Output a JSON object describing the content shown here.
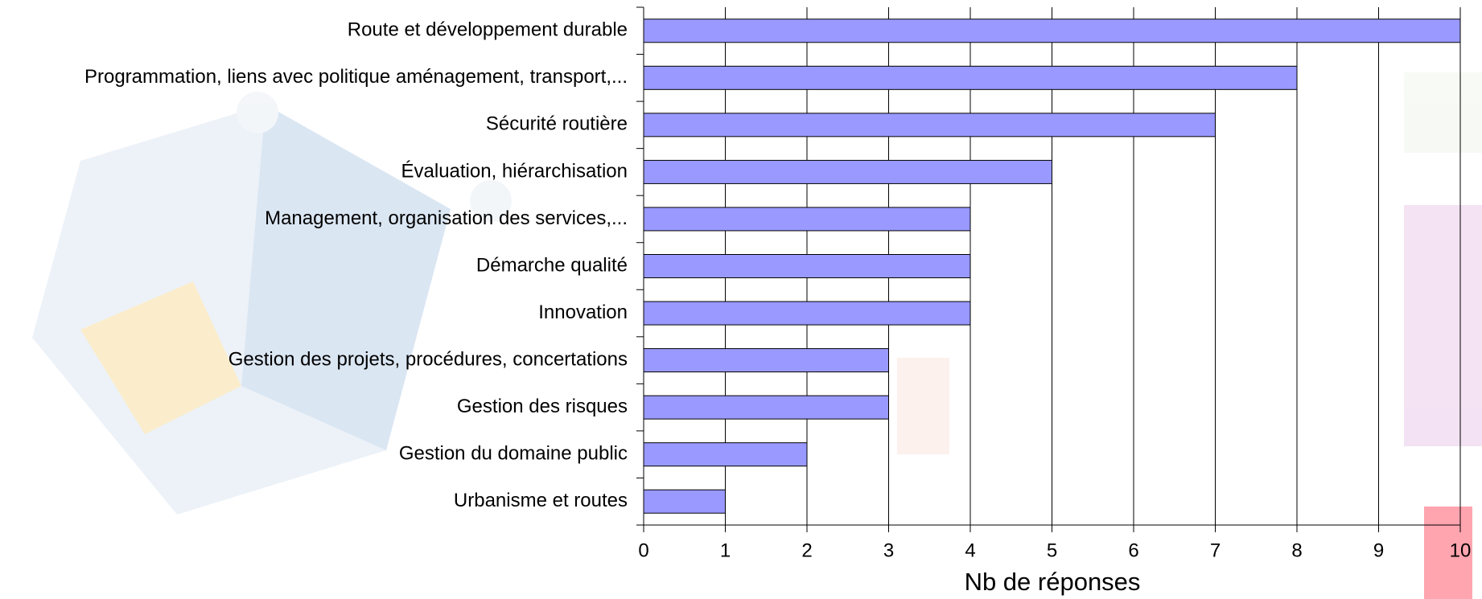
{
  "chart_data": {
    "type": "bar",
    "orientation": "horizontal",
    "categories": [
      "Route et développement durable",
      "Programmation, liens avec politique aménagement, transport,...",
      "Sécurité routière",
      "Évaluation, hiérarchisation",
      "Management, organisation des services,...",
      "Démarche qualité",
      "Innovation",
      "Gestion des projets, procédures, concertations",
      "Gestion des risques",
      "Gestion du domaine public",
      "Urbanisme et routes"
    ],
    "values": [
      10,
      8,
      7,
      5,
      4,
      4,
      4,
      3,
      3,
      2,
      1
    ],
    "color": "#9999ff",
    "xlim": [
      0,
      10
    ],
    "xticks": [
      0,
      1,
      2,
      3,
      4,
      5,
      6,
      7,
      8,
      9,
      10
    ],
    "xlabel": "Nb de réponses",
    "grid": true
  }
}
